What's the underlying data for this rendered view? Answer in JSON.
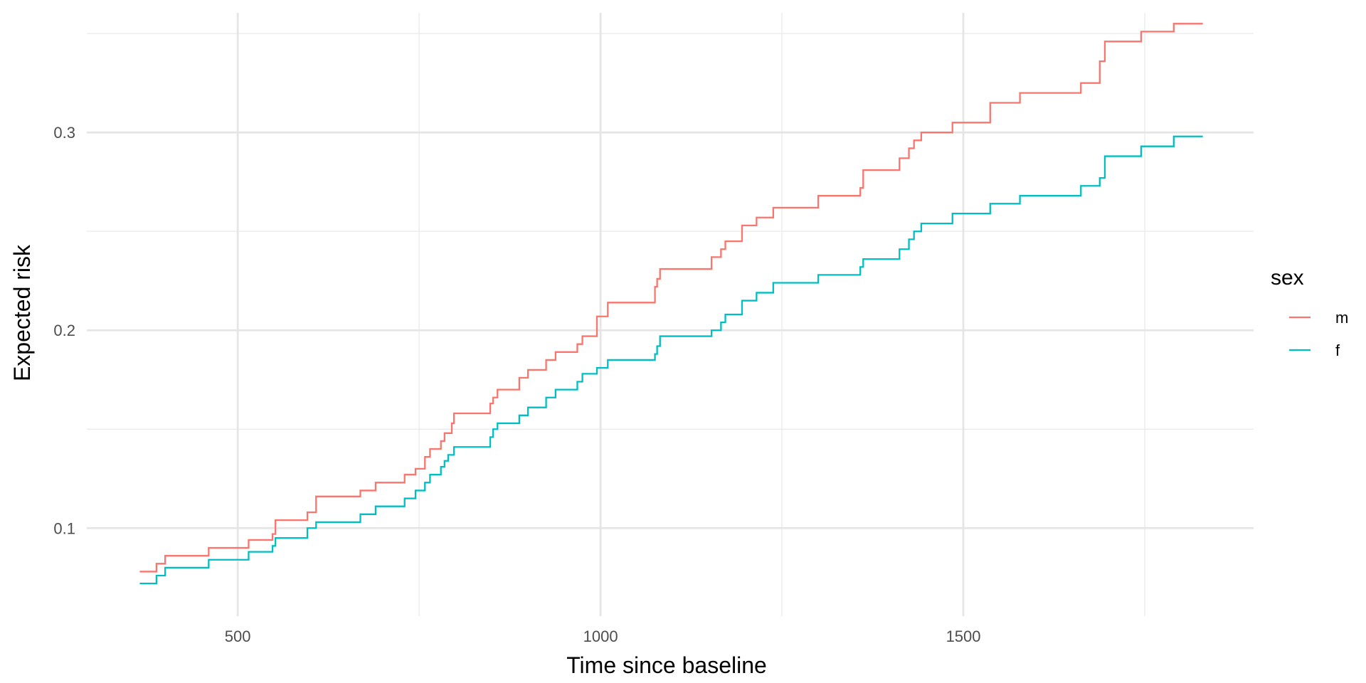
{
  "chart_data": {
    "type": "line",
    "step": true,
    "title": "",
    "xlabel": "Time since baseline",
    "ylabel": "Expected risk",
    "xlim": [
      292,
      1900
    ],
    "ylim": [
      0.0555,
      0.3605
    ],
    "x_major_ticks": [
      500,
      1000,
      1500
    ],
    "x_minor_ticks": [
      750,
      1250,
      1750
    ],
    "y_major_ticks": [
      0.1,
      0.2,
      0.3
    ],
    "y_minor_ticks": [
      0.15,
      0.25,
      0.35
    ],
    "x_tick_labels": [
      "500",
      "1000",
      "1500"
    ],
    "y_tick_labels": [
      "0.1",
      "0.2",
      "0.3"
    ],
    "grid": true,
    "legend": {
      "title": "sex",
      "position": "right"
    },
    "series": [
      {
        "name": "m",
        "color": "#F8766D",
        "points": [
          [
            365,
            0.078
          ],
          [
            388,
            0.082
          ],
          [
            400,
            0.086
          ],
          [
            460,
            0.09
          ],
          [
            515,
            0.094
          ],
          [
            548,
            0.097
          ],
          [
            552,
            0.104
          ],
          [
            596,
            0.108
          ],
          [
            608,
            0.116
          ],
          [
            669,
            0.119
          ],
          [
            690,
            0.123
          ],
          [
            730,
            0.127
          ],
          [
            745,
            0.13
          ],
          [
            758,
            0.136
          ],
          [
            765,
            0.14
          ],
          [
            780,
            0.144
          ],
          [
            785,
            0.148
          ],
          [
            795,
            0.153
          ],
          [
            798,
            0.158
          ],
          [
            848,
            0.163
          ],
          [
            852,
            0.166
          ],
          [
            858,
            0.17
          ],
          [
            888,
            0.176
          ],
          [
            900,
            0.18
          ],
          [
            925,
            0.185
          ],
          [
            938,
            0.189
          ],
          [
            968,
            0.193
          ],
          [
            975,
            0.197
          ],
          [
            995,
            0.207
          ],
          [
            1010,
            0.214
          ],
          [
            1075,
            0.222
          ],
          [
            1078,
            0.226
          ],
          [
            1082,
            0.231
          ],
          [
            1153,
            0.237
          ],
          [
            1166,
            0.241
          ],
          [
            1172,
            0.245
          ],
          [
            1195,
            0.253
          ],
          [
            1215,
            0.257
          ],
          [
            1238,
            0.262
          ],
          [
            1300,
            0.268
          ],
          [
            1358,
            0.272
          ],
          [
            1362,
            0.281
          ],
          [
            1412,
            0.287
          ],
          [
            1425,
            0.292
          ],
          [
            1432,
            0.296
          ],
          [
            1442,
            0.3
          ],
          [
            1485,
            0.305
          ],
          [
            1537,
            0.315
          ],
          [
            1578,
            0.32
          ],
          [
            1662,
            0.325
          ],
          [
            1688,
            0.336
          ],
          [
            1695,
            0.346
          ],
          [
            1745,
            0.351
          ],
          [
            1790,
            0.355
          ],
          [
            1830,
            0.355
          ]
        ]
      },
      {
        "name": "f",
        "color": "#00BFC4",
        "points": [
          [
            365,
            0.072
          ],
          [
            388,
            0.076
          ],
          [
            400,
            0.08
          ],
          [
            460,
            0.084
          ],
          [
            515,
            0.088
          ],
          [
            548,
            0.091
          ],
          [
            552,
            0.095
          ],
          [
            596,
            0.1
          ],
          [
            608,
            0.103
          ],
          [
            669,
            0.107
          ],
          [
            690,
            0.111
          ],
          [
            730,
            0.115
          ],
          [
            745,
            0.119
          ],
          [
            758,
            0.123
          ],
          [
            765,
            0.127
          ],
          [
            780,
            0.131
          ],
          [
            785,
            0.134
          ],
          [
            790,
            0.137
          ],
          [
            798,
            0.141
          ],
          [
            848,
            0.146
          ],
          [
            852,
            0.15
          ],
          [
            858,
            0.153
          ],
          [
            888,
            0.157
          ],
          [
            900,
            0.161
          ],
          [
            925,
            0.166
          ],
          [
            938,
            0.17
          ],
          [
            968,
            0.174
          ],
          [
            975,
            0.178
          ],
          [
            995,
            0.181
          ],
          [
            1010,
            0.185
          ],
          [
            1075,
            0.188
          ],
          [
            1078,
            0.192
          ],
          [
            1082,
            0.197
          ],
          [
            1153,
            0.2
          ],
          [
            1166,
            0.204
          ],
          [
            1172,
            0.208
          ],
          [
            1195,
            0.215
          ],
          [
            1215,
            0.219
          ],
          [
            1238,
            0.224
          ],
          [
            1300,
            0.228
          ],
          [
            1358,
            0.232
          ],
          [
            1362,
            0.236
          ],
          [
            1412,
            0.241
          ],
          [
            1425,
            0.246
          ],
          [
            1432,
            0.25
          ],
          [
            1442,
            0.254
          ],
          [
            1485,
            0.259
          ],
          [
            1537,
            0.264
          ],
          [
            1578,
            0.268
          ],
          [
            1662,
            0.273
          ],
          [
            1688,
            0.277
          ],
          [
            1695,
            0.288
          ],
          [
            1745,
            0.293
          ],
          [
            1790,
            0.298
          ],
          [
            1830,
            0.298
          ]
        ]
      }
    ]
  }
}
